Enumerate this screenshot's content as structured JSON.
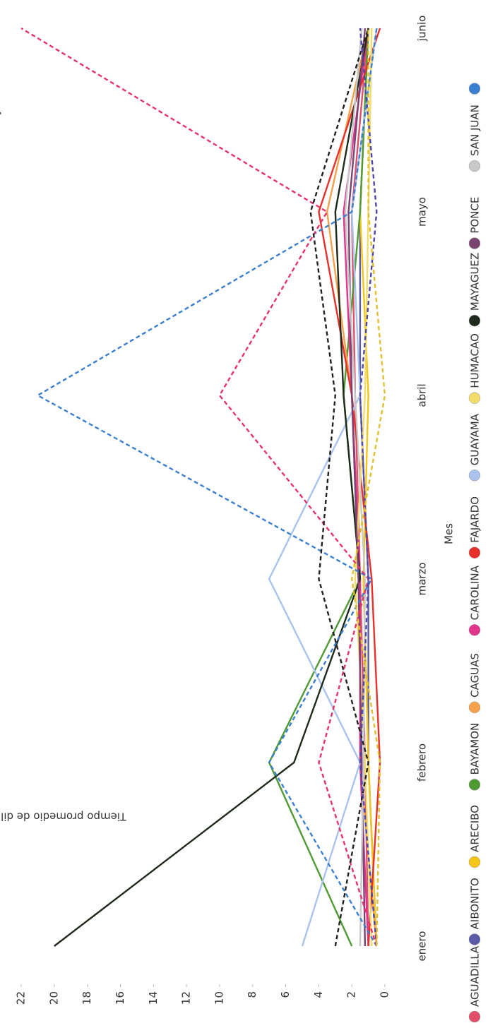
{
  "chart_data": {
    "type": "line",
    "y_label": "Tiempo promedio de diligenciamiento (Días)",
    "x_label": "Mes",
    "annotation": "mayo",
    "categories": [
      "enero",
      "febrero",
      "marzo",
      "abril",
      "mayo",
      "junio"
    ],
    "ylim": [
      0,
      22
    ],
    "yticks": [
      0,
      2,
      4,
      6,
      8,
      10,
      12,
      14,
      16,
      18,
      20,
      22
    ],
    "grid": false,
    "legend": "bottom",
    "series": [
      {
        "name": "AGUADILLA",
        "color": "#e0506a",
        "values": [
          1,
          1.2,
          1.5,
          1.8,
          2,
          1
        ]
      },
      {
        "name": "AIBONITO",
        "color": "#5a5aa8",
        "values": [
          0.5,
          1,
          1,
          1.5,
          1.5,
          1
        ]
      },
      {
        "name": "ARECIBO",
        "color": "#f5c518",
        "values": [
          0.5,
          1,
          1.3,
          1,
          1.5,
          1
        ]
      },
      {
        "name": "BAYAMON",
        "color": "#4f9a33",
        "values": [
          2,
          7,
          1.5,
          2.5,
          1.5,
          1
        ]
      },
      {
        "name": "CAGUAS",
        "color": "#f5a04a",
        "values": [
          0.5,
          1.5,
          1.5,
          2,
          3.5,
          1
        ]
      },
      {
        "name": "CAROLINA",
        "color": "#e0358c",
        "values": [
          1,
          1.5,
          1.5,
          2,
          2.5,
          1
        ]
      },
      {
        "name": "FAJARDO",
        "color": "#e8302a",
        "values": [
          1,
          0.3,
          0.8,
          2,
          4,
          0.3
        ]
      },
      {
        "name": "GUAYAMA",
        "color": "#a9c3ec",
        "values": [
          5,
          1.5,
          7,
          1.5,
          2,
          0.5
        ]
      },
      {
        "name": "HUMACAO",
        "color": "#f2dc6a",
        "values": [
          0.8,
          1.2,
          1.8,
          1.2,
          1,
          0.8
        ]
      },
      {
        "name": "MAYAGUEZ",
        "color": "#1e2a1a",
        "values": [
          20,
          5.5,
          1.5,
          2.5,
          3,
          1
        ]
      },
      {
        "name": "PONCE",
        "color": "#7a4372",
        "values": [
          1.2,
          1.4,
          1.6,
          2,
          2.2,
          1.2
        ]
      },
      {
        "name": "SAN JUAN",
        "color": "#c8c8c8",
        "values": [
          1.5,
          1.3,
          1.2,
          1.8,
          2.4,
          1.4
        ]
      },
      {
        "color": "#3a7fd0",
        "dash": true,
        "values": [
          0.5,
          7,
          0.8,
          21,
          2,
          0.5
        ]
      },
      {
        "color": "#e8326e",
        "dash": true,
        "values": [
          0.5,
          4,
          1,
          10,
          3.5,
          22
        ]
      },
      {
        "color": "#222222",
        "dash": true,
        "values": [
          3,
          1,
          4,
          3,
          4.5,
          1
        ]
      },
      {
        "color": "#5048a8",
        "dash": true,
        "values": [
          0.5,
          1.5,
          1,
          1.5,
          0.5,
          1.5
        ]
      },
      {
        "color": "#e0c030",
        "dash": true,
        "values": [
          0.5,
          0.3,
          2,
          0,
          1,
          1
        ]
      }
    ]
  }
}
